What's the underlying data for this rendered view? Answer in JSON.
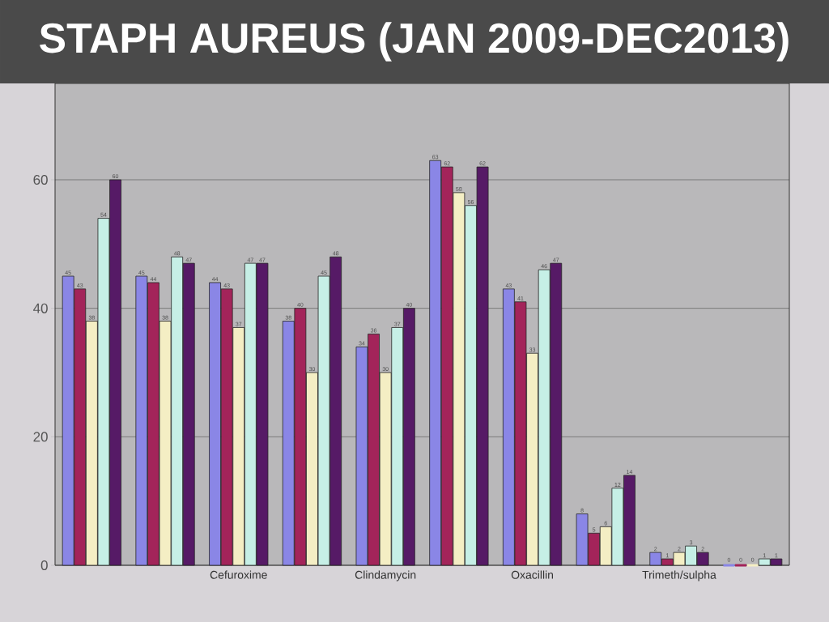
{
  "chart_data": {
    "type": "bar",
    "title": "STAPH AUREUS (JAN 2009-DEC2013)",
    "categories": [
      null,
      null,
      "Cefuroxime",
      null,
      "Clindamycin",
      null,
      "Oxacillin",
      null,
      "Trimeth/sulpha",
      null
    ],
    "series": [
      {
        "color": "#8a86e6",
        "values": [
          45,
          45,
          44,
          38,
          34,
          63,
          43,
          8,
          2,
          0
        ]
      },
      {
        "color": "#a3245a",
        "values": [
          43,
          44,
          43,
          40,
          36,
          62,
          41,
          5,
          1,
          0
        ]
      },
      {
        "color": "#f4eec4",
        "values": [
          38,
          38,
          37,
          30,
          30,
          58,
          33,
          6,
          2,
          0
        ]
      },
      {
        "color": "#c6efe6",
        "values": [
          54,
          48,
          47,
          45,
          37,
          56,
          46,
          12,
          3,
          1
        ]
      },
      {
        "color": "#561a66",
        "values": [
          60,
          47,
          47,
          48,
          40,
          62,
          47,
          14,
          2,
          1
        ]
      }
    ],
    "ylim": [
      0,
      75
    ],
    "yticks": [
      0,
      20,
      40,
      60
    ],
    "grid": "y",
    "data_labels": true
  }
}
